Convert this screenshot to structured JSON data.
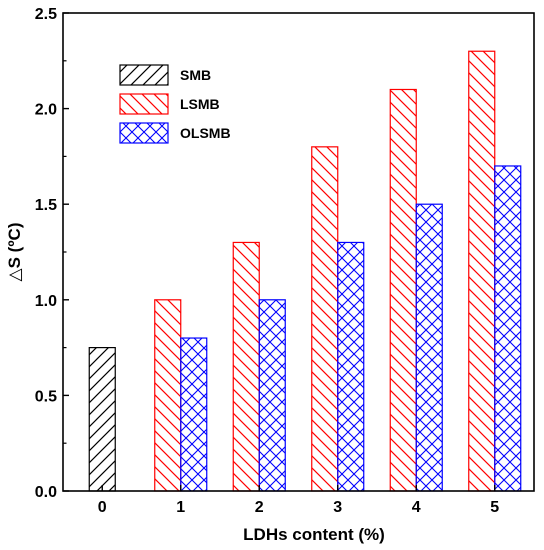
{
  "chart_data": {
    "type": "bar",
    "title": "",
    "xlabel": "LDHs content (%)",
    "ylabel": "△S (ºC)",
    "ylim": [
      0,
      2.5
    ],
    "yticks": [
      0.0,
      0.5,
      1.0,
      1.5,
      2.0,
      2.5
    ],
    "ytick_labels": [
      "0.0",
      "0.5",
      "1.0",
      "1.5",
      "2.0",
      "2.5"
    ],
    "categories": [
      "0",
      "1",
      "2",
      "3",
      "4",
      "5"
    ],
    "legend_position": "top-left",
    "grid": false,
    "series": [
      {
        "name": "SMB",
        "color": "#000000",
        "pattern": "diagonal-lines",
        "values": [
          0.75,
          null,
          null,
          null,
          null,
          null
        ]
      },
      {
        "name": "LSMB",
        "color": "#ff0000",
        "pattern": "diagonal-lines-reverse",
        "values": [
          null,
          1.0,
          1.3,
          1.8,
          2.1,
          2.3
        ]
      },
      {
        "name": "OLSMB",
        "color": "#0000ff",
        "pattern": "cross-hatch",
        "values": [
          null,
          0.8,
          1.0,
          1.3,
          1.5,
          1.7
        ]
      }
    ]
  }
}
